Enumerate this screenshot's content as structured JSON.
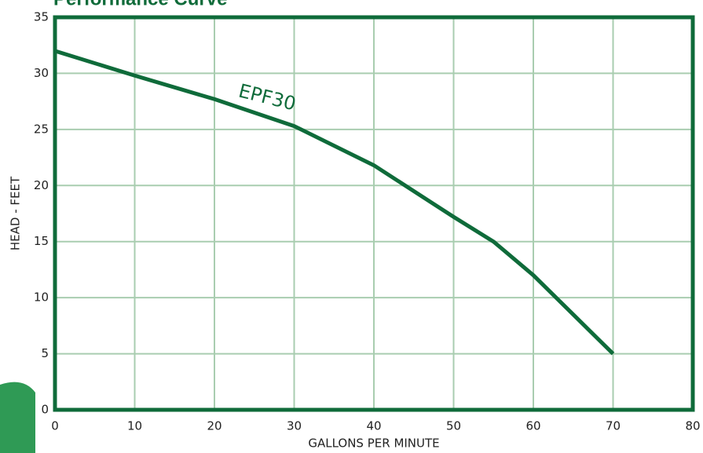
{
  "chart_data": {
    "type": "line",
    "title": "Performance Curve",
    "x_label": "GALLONS PER MINUTE",
    "y_label": "HEAD - FEET",
    "x": [
      0,
      10,
      20,
      30,
      40,
      50,
      55,
      60,
      65,
      70
    ],
    "series": [
      {
        "name": "EPF30",
        "color": "#0f6b3a",
        "values": [
          32,
          29.8,
          27.7,
          25.3,
          21.8,
          17.2,
          15,
          12,
          8.5,
          5
        ]
      }
    ],
    "xlim": [
      0,
      80
    ],
    "ylim": [
      0,
      35
    ],
    "xticks": [
      0,
      10,
      20,
      30,
      40,
      50,
      60,
      70,
      80
    ],
    "yticks": [
      0,
      5,
      10,
      15,
      20,
      25,
      30,
      35
    ],
    "grid": true
  }
}
